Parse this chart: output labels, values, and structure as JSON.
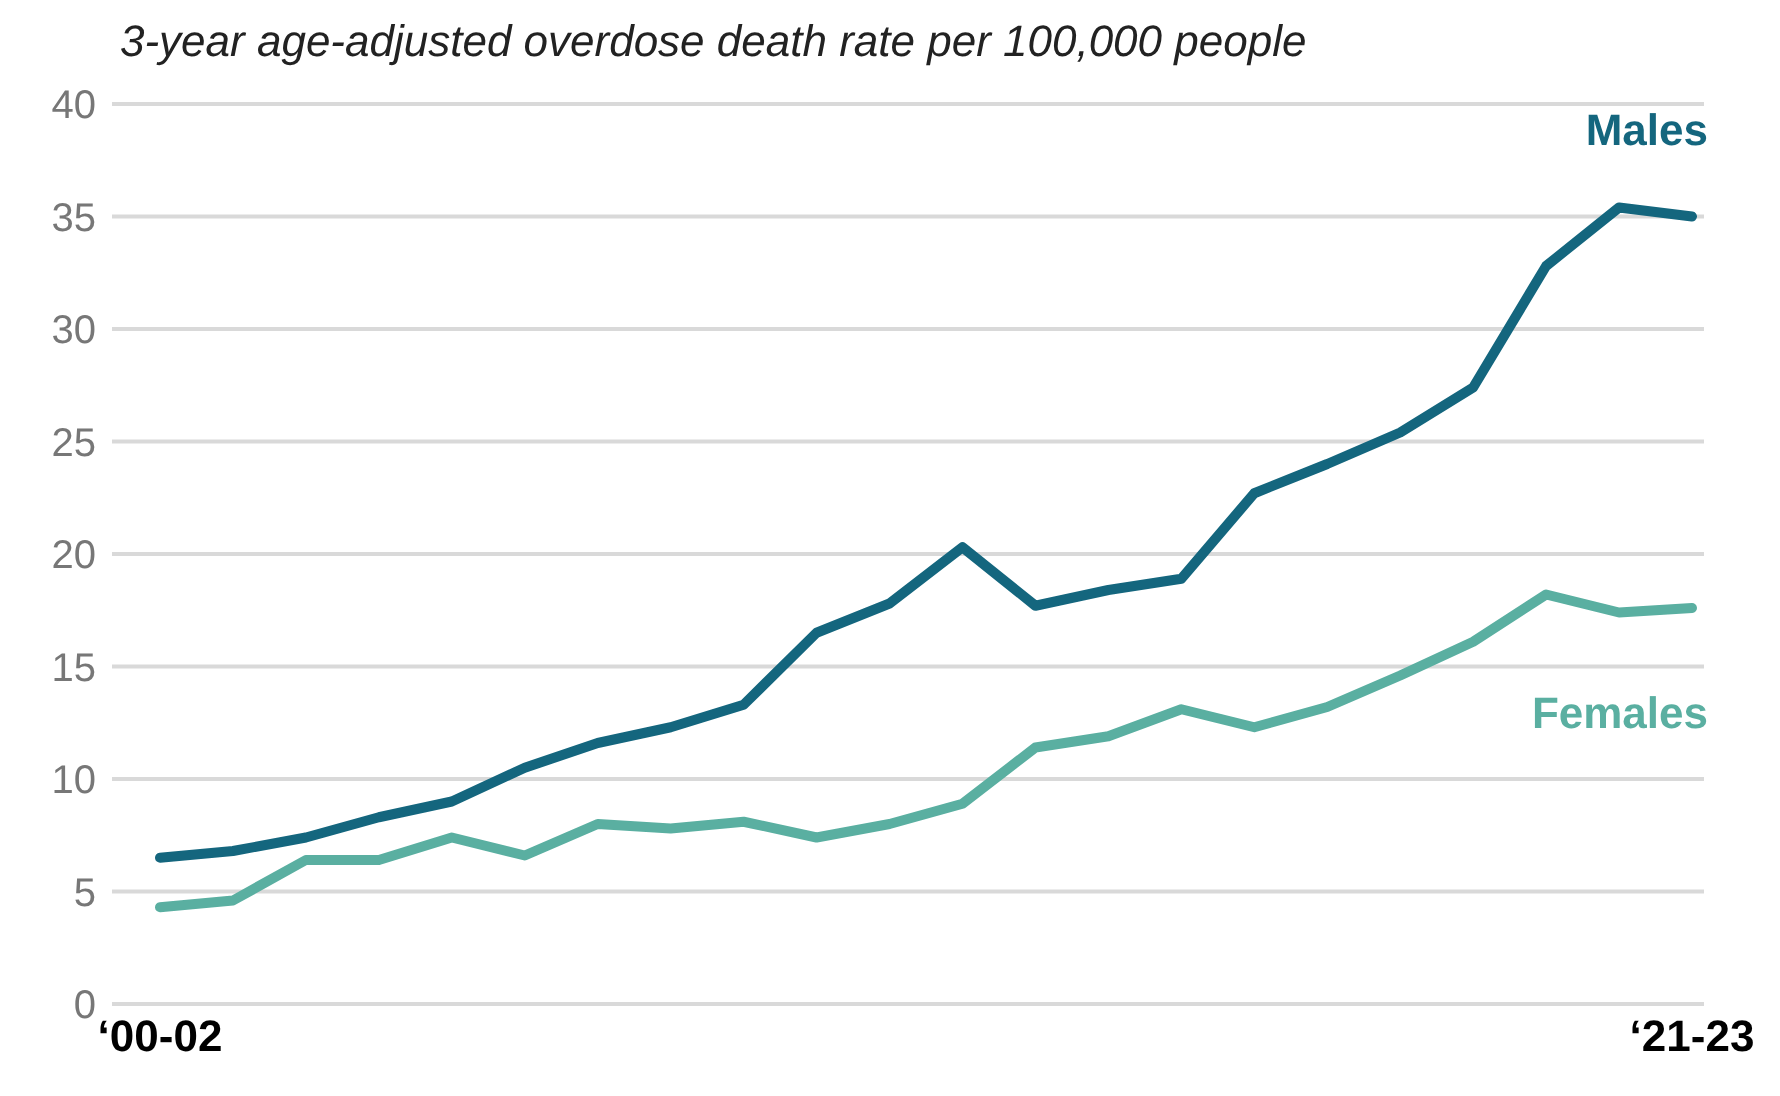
{
  "chart_data": {
    "type": "line",
    "title": "3-year age-adjusted overdose death rate per 100,000 people",
    "categories": [
      "‘00-02",
      null,
      null,
      null,
      null,
      null,
      null,
      null,
      null,
      null,
      null,
      null,
      null,
      null,
      null,
      null,
      null,
      null,
      null,
      null,
      null,
      "‘21-23"
    ],
    "series": [
      {
        "name": "Males",
        "color": "#14667e",
        "values": [
          6.5,
          6.8,
          7.4,
          8.3,
          9.0,
          10.5,
          11.6,
          12.3,
          13.3,
          16.5,
          17.8,
          20.3,
          17.7,
          18.4,
          18.9,
          22.7,
          24.0,
          25.4,
          27.4,
          32.8,
          35.4,
          35.0
        ]
      },
      {
        "name": "Females",
        "color": "#5aafa1",
        "values": [
          4.3,
          4.6,
          6.4,
          6.4,
          7.4,
          6.6,
          8.0,
          7.8,
          8.1,
          7.4,
          8.0,
          8.9,
          11.4,
          11.9,
          13.1,
          12.3,
          13.2,
          14.6,
          16.1,
          18.2,
          17.4,
          17.6
        ]
      }
    ],
    "ylim": [
      0,
      40
    ],
    "yticks": [
      0,
      5,
      10,
      15,
      20,
      25,
      30,
      35,
      40
    ],
    "grid": "y",
    "legend": false,
    "marker": "none",
    "line_style": "solid"
  }
}
